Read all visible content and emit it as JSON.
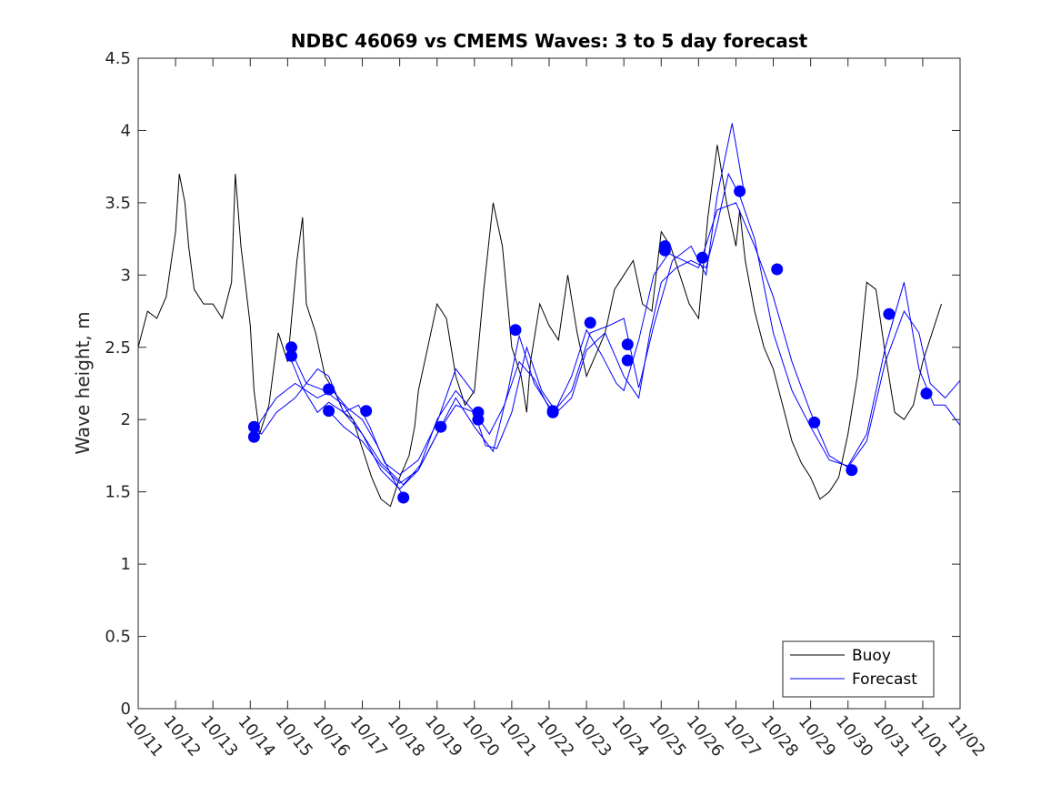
{
  "chart_data": {
    "type": "line",
    "title": "NDBC 46069 vs CMEMS Waves: 3 to 5 day forecast",
    "xlabel": "",
    "ylabel": "Wave height, m",
    "x_unit": "days since 10/11",
    "xlim": [
      0,
      22
    ],
    "ylim": [
      0,
      4.5
    ],
    "xticks": [
      0,
      1,
      2,
      3,
      4,
      5,
      6,
      7,
      8,
      9,
      10,
      11,
      12,
      13,
      14,
      15,
      16,
      17,
      18,
      19,
      20,
      21,
      22
    ],
    "xtick_labels": [
      "10/11",
      "10/12",
      "10/13",
      "10/14",
      "10/15",
      "10/16",
      "10/17",
      "10/18",
      "10/19",
      "10/20",
      "10/21",
      "10/22",
      "10/23",
      "10/24",
      "10/25",
      "10/26",
      "10/27",
      "10/28",
      "10/29",
      "10/30",
      "10/31",
      "11/01",
      "11/02"
    ],
    "yticks": [
      0,
      0.5,
      1,
      1.5,
      2,
      2.5,
      3,
      3.5,
      4,
      4.5
    ],
    "ytick_labels": [
      "0",
      "0.5",
      "1",
      "1.5",
      "2",
      "2.5",
      "3",
      "3.5",
      "4",
      "4.5"
    ],
    "legend": {
      "location": "bottom-right",
      "entries": [
        "Buoy",
        "Forecast"
      ]
    },
    "colors": {
      "buoy": "#000000",
      "forecast": "#0000ff",
      "axis": "#262626"
    },
    "buoy": {
      "name": "Buoy",
      "x": [
        0,
        0.25,
        0.5,
        0.75,
        1,
        1.1,
        1.25,
        1.35,
        1.5,
        1.75,
        2,
        2.25,
        2.5,
        2.6,
        2.75,
        3,
        3.1,
        3.25,
        3.5,
        3.6,
        3.75,
        4,
        4.25,
        4.4,
        4.5,
        4.75,
        5,
        5.25,
        5.5,
        5.75,
        6,
        6.25,
        6.5,
        6.75,
        7,
        7.25,
        7.4,
        7.5,
        7.75,
        8,
        8.25,
        8.5,
        8.75,
        9,
        9.25,
        9.5,
        9.75,
        10,
        10.25,
        10.4,
        10.5,
        10.75,
        11,
        11.25,
        11.5,
        11.75,
        12,
        12.25,
        12.5,
        12.75,
        13,
        13.25,
        13.5,
        13.75,
        14,
        14.25,
        14.5,
        14.75,
        15,
        15.25,
        15.5,
        15.75,
        16,
        16.1,
        16.25,
        16.5,
        16.75,
        17,
        17.25,
        17.5,
        17.75,
        18,
        18.25,
        18.5,
        18.75,
        19,
        19.25,
        19.5,
        19.75,
        20,
        20.25,
        20.5,
        20.75,
        21,
        21.25,
        21.5
      ],
      "y": [
        2.5,
        2.75,
        2.7,
        2.85,
        3.3,
        3.7,
        3.5,
        3.2,
        2.9,
        2.8,
        2.8,
        2.7,
        2.95,
        3.7,
        3.2,
        2.65,
        2.2,
        1.9,
        2.1,
        2.3,
        2.6,
        2.4,
        3.1,
        3.4,
        2.8,
        2.6,
        2.3,
        2.2,
        2.05,
        2.0,
        1.8,
        1.6,
        1.45,
        1.4,
        1.6,
        1.75,
        1.95,
        2.2,
        2.5,
        2.8,
        2.7,
        2.3,
        2.1,
        2.2,
        2.9,
        3.5,
        3.2,
        2.5,
        2.3,
        2.05,
        2.4,
        2.8,
        2.65,
        2.55,
        3.0,
        2.6,
        2.3,
        2.45,
        2.6,
        2.9,
        3.0,
        3.1,
        2.8,
        2.75,
        3.3,
        3.2,
        3.0,
        2.8,
        2.7,
        3.4,
        3.9,
        3.5,
        3.2,
        3.45,
        3.1,
        2.75,
        2.5,
        2.35,
        2.1,
        1.85,
        1.7,
        1.6,
        1.45,
        1.5,
        1.6,
        1.9,
        2.3,
        2.95,
        2.9,
        2.45,
        2.05,
        2.0,
        2.1,
        2.4,
        2.6,
        2.8
      ]
    },
    "forecast": {
      "name": "Forecast",
      "runs": [
        {
          "x": [
            3.05,
            3.3,
            3.7,
            4.2,
            4.8,
            5.2,
            5.6,
            6.0,
            6.4,
            6.8,
            7.1
          ],
          "y": [
            1.88,
            2.0,
            2.15,
            2.25,
            2.15,
            2.2,
            2.08,
            2.0,
            1.82,
            1.6,
            1.47
          ]
        },
        {
          "x": [
            3.05,
            3.3,
            3.7,
            4.2,
            4.8,
            5.1,
            5.5,
            5.9,
            6.2,
            6.6,
            7.0,
            7.5,
            8.0,
            8.5,
            9.0
          ],
          "y": [
            1.95,
            1.9,
            2.05,
            2.15,
            2.35,
            2.3,
            2.05,
            2.1,
            1.95,
            1.7,
            1.62,
            1.72,
            1.98,
            2.35,
            2.18
          ]
        },
        {
          "x": [
            4.05,
            4.4,
            4.8,
            5.1,
            5.5,
            6.0,
            6.5,
            7.0,
            7.5,
            8.0,
            8.5,
            9.0,
            9.3,
            9.6,
            10.0,
            10.4,
            10.8,
            11.2,
            11.6,
            12.0,
            12.5,
            13.0,
            13.4,
            13.7,
            14.0,
            14.4,
            14.8,
            15.2,
            15.5,
            15.8,
            16.1,
            16.5,
            17.0,
            17.5,
            18.0,
            18.5,
            19.0,
            19.5,
            20.0,
            20.5,
            20.9,
            21.3,
            21.6,
            22.0
          ],
          "y": [
            2.44,
            2.22,
            2.05,
            2.12,
            2.05,
            1.9,
            1.65,
            1.52,
            1.65,
            2.0,
            2.2,
            2.05,
            1.82,
            1.8,
            2.05,
            2.5,
            2.2,
            2.05,
            2.15,
            2.48,
            2.6,
            2.3,
            2.15,
            2.6,
            2.95,
            3.05,
            3.1,
            3.05,
            3.35,
            3.7,
            3.55,
            3.25,
            2.6,
            2.2,
            1.95,
            1.72,
            1.68,
            1.9,
            2.5,
            2.95,
            2.35,
            2.1,
            2.1,
            1.96
          ]
        },
        {
          "x": [
            4.05,
            4.5,
            5.0,
            5.5,
            6.0,
            6.5,
            7.1,
            7.6,
            8.1,
            8.5,
            9.0,
            9.5,
            9.9,
            10.2,
            10.6,
            11.1,
            11.6,
            12.1,
            12.6,
            13.0,
            13.4,
            13.8,
            14.3,
            14.8,
            15.2,
            15.5,
            15.9,
            16.2
          ],
          "y": [
            2.5,
            2.25,
            2.2,
            2.1,
            1.9,
            1.7,
            1.55,
            1.7,
            1.95,
            2.15,
            1.95,
            1.78,
            2.2,
            2.58,
            2.25,
            2.05,
            2.2,
            2.6,
            2.65,
            2.7,
            2.22,
            2.65,
            3.1,
            3.2,
            3.0,
            3.55,
            4.05,
            3.6
          ]
        },
        {
          "x": [
            5.1,
            5.5,
            6.0,
            6.5,
            7.0,
            7.5,
            8.0,
            8.5,
            9.0,
            9.4,
            9.8,
            10.2,
            10.6,
            11.1,
            11.6,
            12.0,
            12.4,
            12.8,
            13.0,
            13.4,
            13.8,
            14.2,
            14.6,
            15.0,
            15.5,
            16.0,
            16.5,
            17.0,
            17.5,
            18.0,
            18.5,
            19.0,
            19.5,
            20.0,
            20.5,
            20.9,
            21.2,
            21.6,
            22.0
          ],
          "y": [
            2.06,
            1.95,
            1.85,
            1.68,
            1.56,
            1.65,
            1.9,
            2.1,
            2.05,
            1.9,
            2.1,
            2.4,
            2.28,
            2.03,
            2.3,
            2.62,
            2.45,
            2.25,
            2.2,
            2.55,
            3.0,
            3.15,
            3.1,
            3.05,
            3.45,
            3.5,
            3.2,
            2.85,
            2.4,
            2.05,
            1.75,
            1.67,
            1.85,
            2.4,
            2.75,
            2.6,
            2.25,
            2.15,
            2.27
          ]
        }
      ],
      "markers": [
        {
          "x": 3.1,
          "y": 1.95
        },
        {
          "x": 3.1,
          "y": 1.88
        },
        {
          "x": 4.1,
          "y": 2.5
        },
        {
          "x": 4.1,
          "y": 2.44
        },
        {
          "x": 5.1,
          "y": 2.21
        },
        {
          "x": 5.1,
          "y": 2.06
        },
        {
          "x": 6.1,
          "y": 2.06
        },
        {
          "x": 7.1,
          "y": 1.46
        },
        {
          "x": 8.1,
          "y": 1.95
        },
        {
          "x": 9.1,
          "y": 2.05
        },
        {
          "x": 9.1,
          "y": 2.0
        },
        {
          "x": 10.1,
          "y": 2.62
        },
        {
          "x": 11.1,
          "y": 2.06
        },
        {
          "x": 11.1,
          "y": 2.05
        },
        {
          "x": 12.1,
          "y": 2.67
        },
        {
          "x": 13.1,
          "y": 2.52
        },
        {
          "x": 13.1,
          "y": 2.41
        },
        {
          "x": 14.1,
          "y": 3.2
        },
        {
          "x": 14.1,
          "y": 3.17
        },
        {
          "x": 15.1,
          "y": 3.12
        },
        {
          "x": 16.1,
          "y": 3.58
        },
        {
          "x": 17.1,
          "y": 3.04
        },
        {
          "x": 18.1,
          "y": 1.98
        },
        {
          "x": 19.1,
          "y": 1.65
        },
        {
          "x": 20.1,
          "y": 2.73
        },
        {
          "x": 21.1,
          "y": 2.18
        }
      ]
    }
  }
}
